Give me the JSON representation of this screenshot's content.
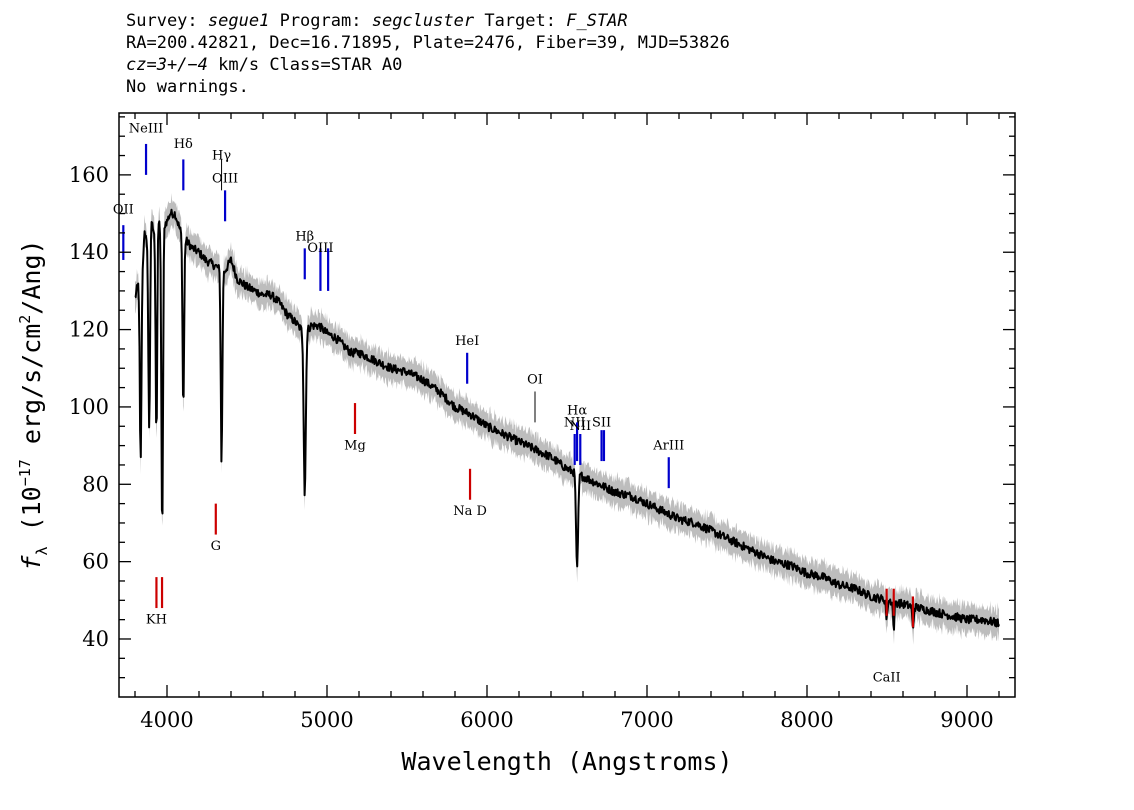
{
  "header": {
    "survey_key": "Survey:",
    "survey": "segue1",
    "program_key": "Program:",
    "program": "segcluster",
    "target_key": "Target:",
    "target": "F_STAR",
    "line2": "RA=200.42821, Dec=16.71895, Plate=2476, Fiber=39, MJD=53826",
    "cz_key": "cz=",
    "cz_value": "3+/−4",
    "cz_rest": " km/s Class=STAR A0",
    "line4": "No warnings."
  },
  "chart_data": {
    "type": "line",
    "title": "",
    "xlabel": "Wavelength (Angstroms)",
    "ylabel": "f_λ (10^-17 erg/s/cm^2/Ang)",
    "xlim": [
      3700,
      9300
    ],
    "ylim": [
      25,
      176
    ],
    "xticks": [
      4000,
      5000,
      6000,
      7000,
      8000,
      9000
    ],
    "yticks": [
      40,
      60,
      80,
      100,
      120,
      140,
      160
    ],
    "colors": {
      "flux": "#000000",
      "error_band": "#bdbdbd",
      "emission": "#0000cc",
      "absorption": "#cc0000",
      "sky": "#000000"
    },
    "series": [
      {
        "points": [
          [
            3800,
            128
          ],
          [
            3820,
            132
          ],
          [
            3840,
            130
          ],
          [
            3860,
            146
          ],
          [
            3880,
            140
          ],
          [
            3900,
            148
          ],
          [
            3920,
            145
          ],
          [
            3940,
            150
          ],
          [
            3960,
            146
          ],
          [
            4000,
            148
          ],
          [
            4020,
            150
          ],
          [
            4050,
            150
          ],
          [
            4080,
            146
          ],
          [
            4120,
            143
          ],
          [
            4160,
            141
          ],
          [
            4200,
            140
          ],
          [
            4240,
            138
          ],
          [
            4280,
            137
          ],
          [
            4320,
            136
          ],
          [
            4360,
            135
          ],
          [
            4400,
            138
          ],
          [
            4440,
            133
          ],
          [
            4500,
            131
          ],
          [
            4550,
            130
          ],
          [
            4600,
            129
          ],
          [
            4650,
            129
          ],
          [
            4700,
            127
          ],
          [
            4750,
            124
          ],
          [
            4800,
            122
          ],
          [
            4860,
            119
          ],
          [
            4900,
            121
          ],
          [
            4950,
            121
          ],
          [
            5000,
            119
          ],
          [
            5050,
            118
          ],
          [
            5100,
            116
          ],
          [
            5150,
            114
          ],
          [
            5200,
            114
          ],
          [
            5300,
            112
          ],
          [
            5400,
            110
          ],
          [
            5500,
            109
          ],
          [
            5600,
            107
          ],
          [
            5700,
            104
          ],
          [
            5800,
            100
          ],
          [
            5900,
            98
          ],
          [
            6000,
            95
          ],
          [
            6100,
            93
          ],
          [
            6200,
            91
          ],
          [
            6300,
            89
          ],
          [
            6400,
            87
          ],
          [
            6500,
            84
          ],
          [
            6600,
            82
          ],
          [
            6700,
            80
          ],
          [
            6800,
            78
          ],
          [
            6900,
            77
          ],
          [
            7000,
            75
          ],
          [
            7100,
            73
          ],
          [
            7200,
            71
          ],
          [
            7300,
            70
          ],
          [
            7400,
            68
          ],
          [
            7500,
            66
          ],
          [
            7600,
            64
          ],
          [
            7700,
            62
          ],
          [
            7800,
            60
          ],
          [
            7900,
            59
          ],
          [
            8000,
            57
          ],
          [
            8100,
            56
          ],
          [
            8200,
            54
          ],
          [
            8300,
            53
          ],
          [
            8400,
            51
          ],
          [
            8500,
            50
          ],
          [
            8600,
            49
          ],
          [
            8700,
            48
          ],
          [
            8800,
            47
          ],
          [
            8900,
            46
          ],
          [
            9000,
            45
          ],
          [
            9100,
            45
          ],
          [
            9200,
            44
          ]
        ],
        "error_band": 3.5,
        "absorption_features": [
          {
            "x": 3835,
            "depth": 45
          },
          {
            "x": 3889,
            "depth": 50
          },
          {
            "x": 3934,
            "depth": 56
          },
          {
            "x": 3970,
            "depth": 80
          },
          {
            "x": 4102,
            "depth": 45
          },
          {
            "x": 4341,
            "depth": 50
          },
          {
            "x": 4861,
            "depth": 42
          },
          {
            "x": 6563,
            "depth": 25
          },
          {
            "x": 8498,
            "depth": 5
          },
          {
            "x": 8542,
            "depth": 7
          },
          {
            "x": 8662,
            "depth": 6
          }
        ]
      }
    ],
    "annotations": [
      {
        "label": "OII",
        "x": 3727,
        "type": "emission",
        "y_bottom": 138,
        "y_top": 147,
        "label_y": 150
      },
      {
        "label": "NeIII",
        "x": 3869,
        "type": "emission",
        "y_bottom": 160,
        "y_top": 168,
        "label_y": 171
      },
      {
        "label": "Hδ",
        "x": 4102,
        "type": "emission",
        "y_bottom": 156,
        "y_top": 164,
        "label_y": 167
      },
      {
        "label": "Hγ",
        "x": 4341,
        "type": "sky",
        "y_bottom": 156,
        "y_top": 164,
        "label_y": 164
      },
      {
        "label": "OIII",
        "x": 4363,
        "type": "emission",
        "y_bottom": 148,
        "y_top": 156,
        "label_y": 158
      },
      {
        "label": "Hβ",
        "x": 4861,
        "type": "emission",
        "y_bottom": 133,
        "y_top": 141,
        "label_y": 143
      },
      {
        "label": "OIII",
        "x": 4959,
        "type": "emission",
        "y_bottom": 130,
        "y_top": 141,
        "label_y": 140
      },
      {
        "label": "",
        "x": 5007,
        "type": "emission",
        "y_bottom": 130,
        "y_top": 141,
        "label_y": 0
      },
      {
        "label": "HeI",
        "x": 5876,
        "type": "emission",
        "y_bottom": 106,
        "y_top": 114,
        "label_y": 116
      },
      {
        "label": "OI",
        "x": 6300,
        "type": "sky",
        "y_bottom": 96,
        "y_top": 104,
        "label_y": 106
      },
      {
        "label": "NII",
        "x": 6548,
        "type": "emission",
        "y_bottom": 85,
        "y_top": 93,
        "label_y": 95
      },
      {
        "label": "Hα",
        "x": 6563,
        "type": "emission",
        "y_bottom": 86,
        "y_top": 96,
        "label_y": 98
      },
      {
        "label": "NII",
        "x": 6583,
        "type": "emission",
        "y_bottom": 85,
        "y_top": 93,
        "label_y": 94
      },
      {
        "label": "SII",
        "x": 6716,
        "type": "emission",
        "y_bottom": 86,
        "y_top": 94,
        "label_y": 95
      },
      {
        "label": "",
        "x": 6731,
        "type": "emission",
        "y_bottom": 86,
        "y_top": 94,
        "label_y": 0
      },
      {
        "label": "ArIII",
        "x": 7136,
        "type": "emission",
        "y_bottom": 79,
        "y_top": 87,
        "label_y": 89
      },
      {
        "label": "KH",
        "x": 3934,
        "type": "absorption",
        "y_bottom": 48,
        "y_top": 56,
        "label_y": 44
      },
      {
        "label": "",
        "x": 3969,
        "type": "absorption",
        "y_bottom": 48,
        "y_top": 56,
        "label_y": 0
      },
      {
        "label": "G",
        "x": 4305,
        "type": "absorption",
        "y_bottom": 67,
        "y_top": 75,
        "label_y": 63
      },
      {
        "label": "Mg",
        "x": 5175,
        "type": "absorption",
        "y_bottom": 93,
        "y_top": 101,
        "label_y": 89
      },
      {
        "label": "Na D",
        "x": 5894,
        "type": "absorption",
        "y_bottom": 76,
        "y_top": 84,
        "label_y": 72
      },
      {
        "label": "CaII",
        "x": 8498,
        "type": "absorption",
        "y_bottom": 46,
        "y_top": 53,
        "label_y": 29
      },
      {
        "label": "",
        "x": 8542,
        "type": "absorption",
        "y_bottom": 46,
        "y_top": 53,
        "label_y": 0
      },
      {
        "label": "",
        "x": 8662,
        "type": "absorption",
        "y_bottom": 43,
        "y_top": 51,
        "label_y": 0
      }
    ]
  }
}
